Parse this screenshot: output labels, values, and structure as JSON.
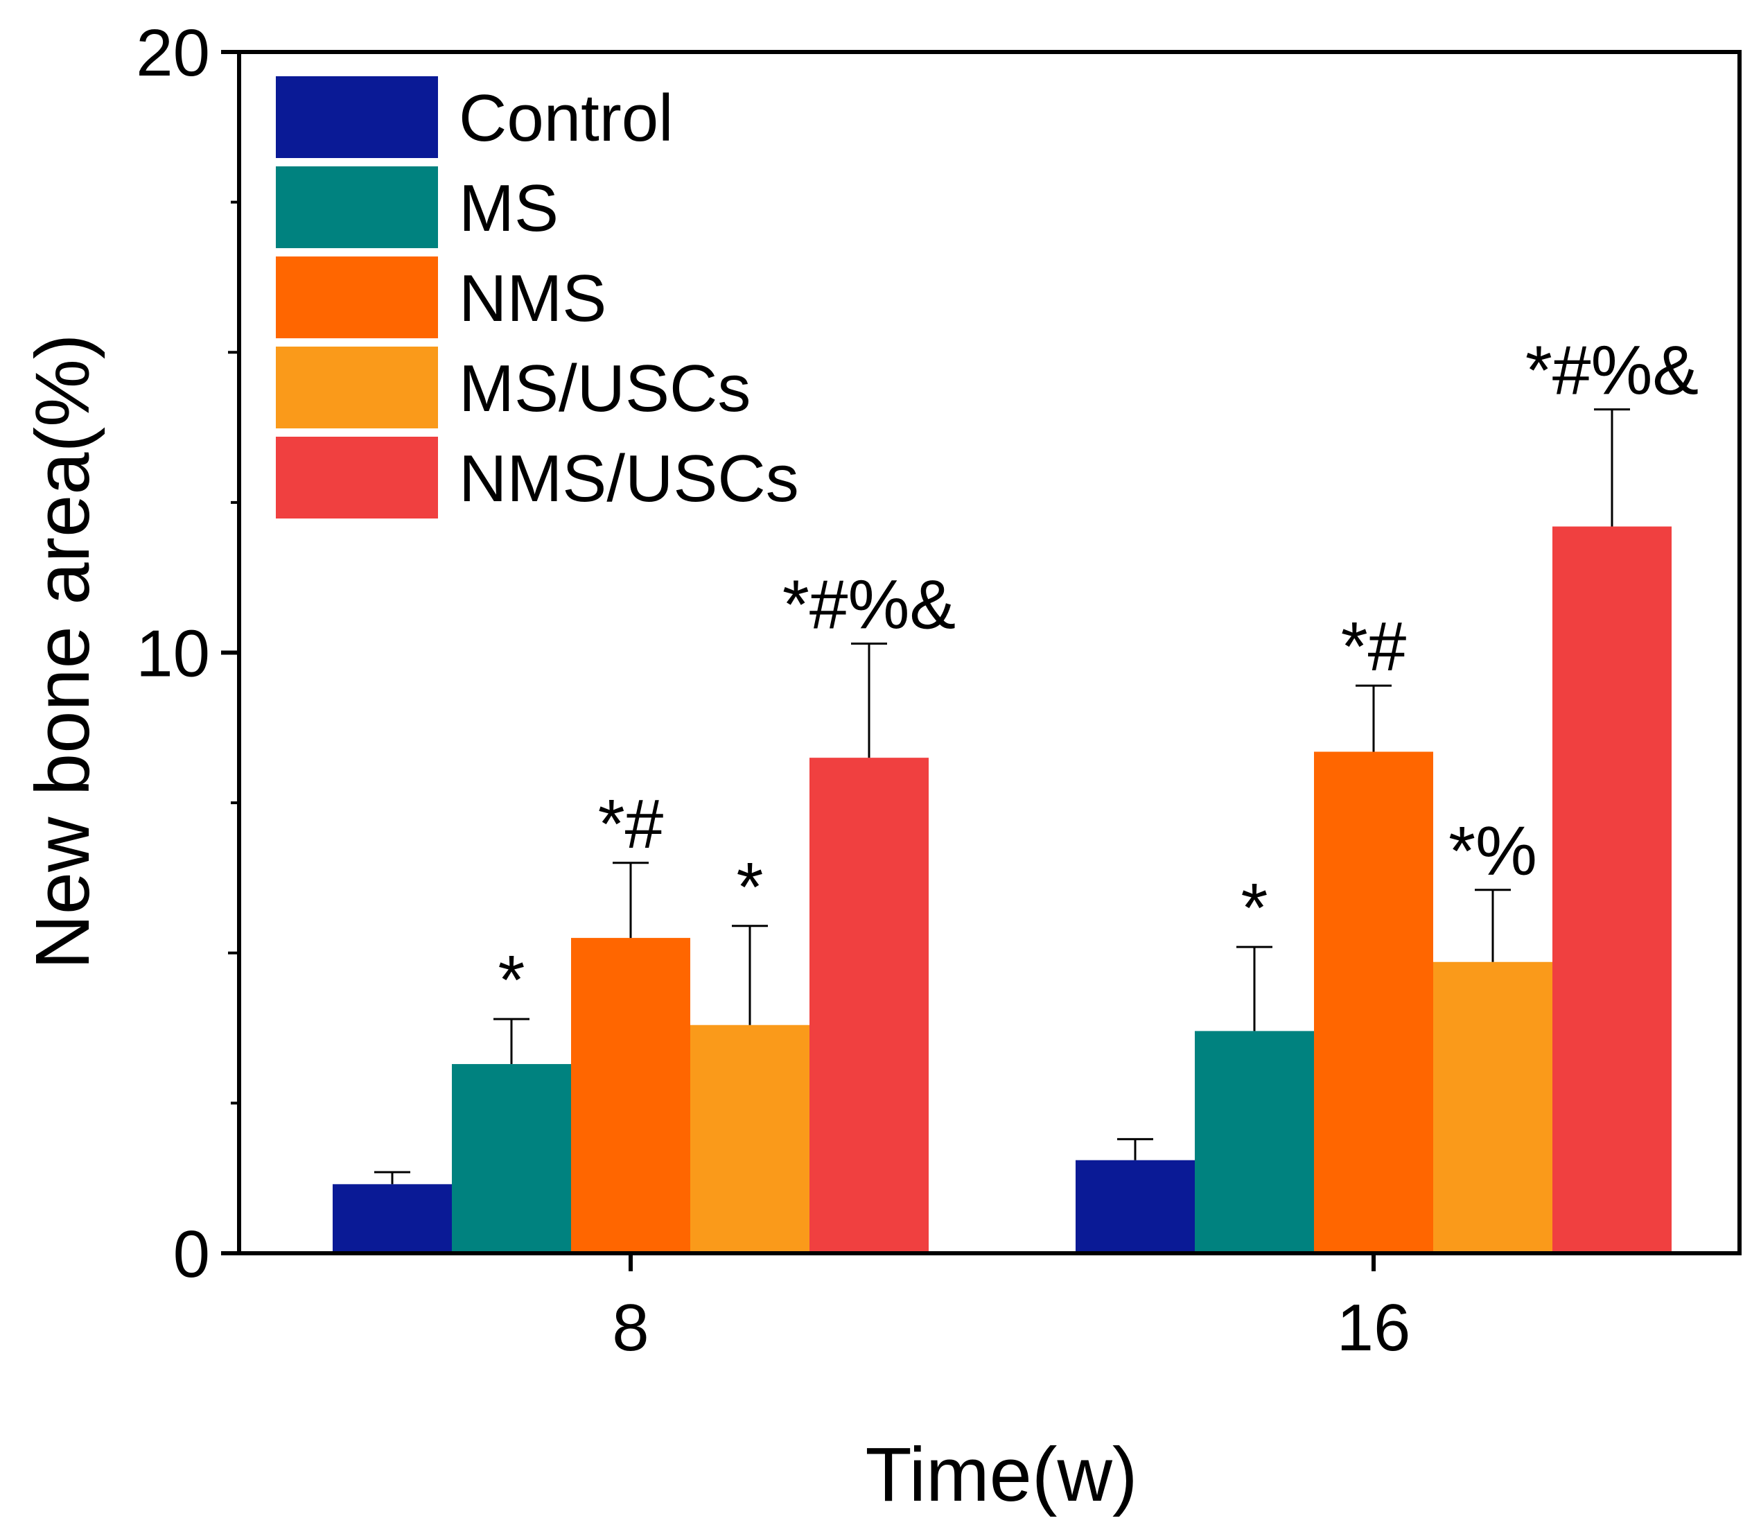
{
  "chart_data": {
    "type": "bar",
    "title": "",
    "xlabel": "Time(w)",
    "ylabel": "New bone area(%)",
    "ylim": [
      0,
      20
    ],
    "yticks": [
      "0",
      "10",
      "20"
    ],
    "categories": [
      "8",
      "16"
    ],
    "legend_position": "top-left",
    "grid": false,
    "series": [
      {
        "name": "Control",
        "color": "#0a1a96",
        "values": [
          1.15,
          1.55
        ],
        "errors": [
          0.2,
          0.35
        ],
        "annotations": [
          "",
          ""
        ]
      },
      {
        "name": "MS",
        "color": "#00827f",
        "values": [
          3.15,
          3.7
        ],
        "errors": [
          0.75,
          1.4
        ],
        "annotations": [
          "*",
          "*"
        ]
      },
      {
        "name": "NMS",
        "color": "#ff6600",
        "values": [
          5.25,
          8.35
        ],
        "errors": [
          1.25,
          1.1
        ],
        "annotations": [
          "*#",
          "*#"
        ]
      },
      {
        "name": "MS/USCs",
        "color": "#fa9a1a",
        "values": [
          3.8,
          4.85
        ],
        "errors": [
          1.65,
          1.2
        ],
        "annotations": [
          "*",
          "*%"
        ]
      },
      {
        "name": "NMS/USCs",
        "color": "#f04040",
        "values": [
          8.25,
          12.1
        ],
        "errors": [
          1.9,
          1.95
        ],
        "annotations": [
          "*#%&",
          "*#%&"
        ]
      }
    ]
  }
}
